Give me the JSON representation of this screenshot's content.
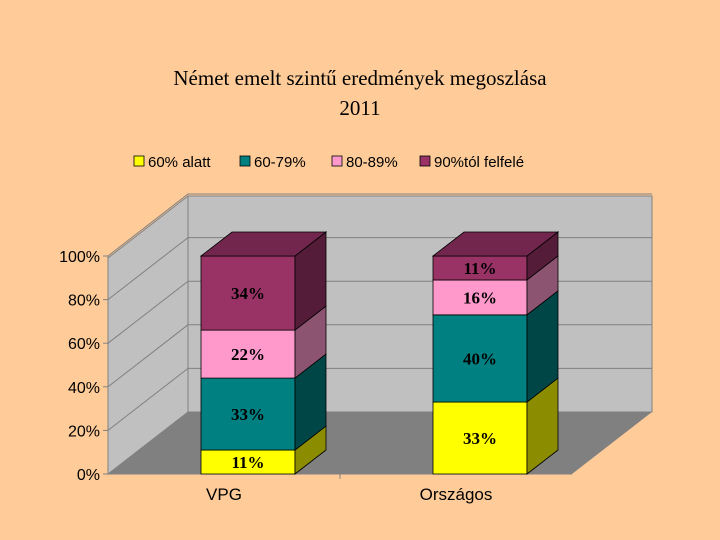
{
  "chart_data": {
    "type": "bar",
    "stacked": true,
    "percent_stacked": true,
    "three_d": true,
    "title": "Német emelt szintű eredmények megoszlása",
    "subtitle": "2011",
    "categories": [
      "VPG",
      "Országos"
    ],
    "series": [
      {
        "name": "60% alatt",
        "values": [
          11,
          33
        ],
        "labels": [
          "11%",
          "33%"
        ],
        "color": "#FFFF00"
      },
      {
        "name": "60-79%",
        "values": [
          33,
          40
        ],
        "labels": [
          "33%",
          "40%"
        ],
        "color": "#008080"
      },
      {
        "name": "80-89%",
        "values": [
          22,
          16
        ],
        "labels": [
          "22%",
          "16%"
        ],
        "color": "#FF99CC"
      },
      {
        "name": "90%tól felfelé",
        "values": [
          34,
          11
        ],
        "labels": [
          "34%",
          "11%"
        ],
        "color": "#993366"
      }
    ],
    "y_ticks": [
      "0%",
      "20%",
      "40%",
      "60%",
      "80%",
      "100%"
    ],
    "ylim": [
      0,
      100
    ],
    "legend_position": "top",
    "grid": true,
    "wall_color": "#C0C0C0",
    "floor_color": "#808080"
  }
}
